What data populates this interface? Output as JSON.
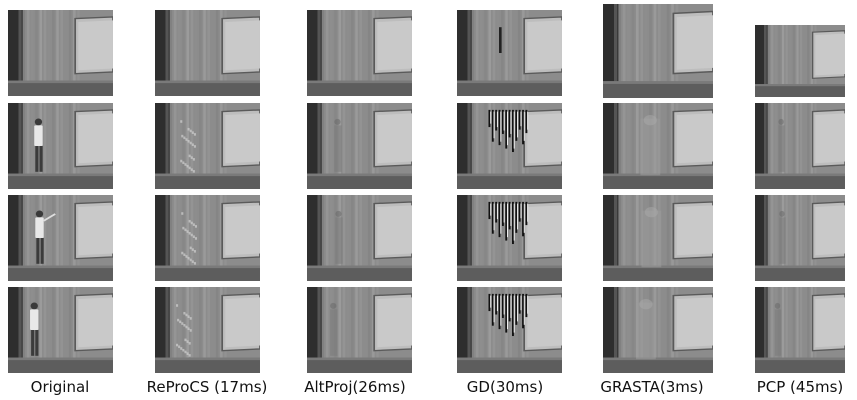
{
  "figure": {
    "columns": [
      {
        "label": "Original",
        "method": "original"
      },
      {
        "label": "ReProCS (17ms)",
        "method": "reprocs"
      },
      {
        "label": "AltProj(26ms)",
        "method": "altproj"
      },
      {
        "label": "GD(30ms)",
        "method": "gd"
      },
      {
        "label": "GRASTA(3ms)",
        "method": "grasta"
      },
      {
        "label": "PCP (45ms)",
        "method": "pcp"
      }
    ],
    "rows": 4
  }
}
